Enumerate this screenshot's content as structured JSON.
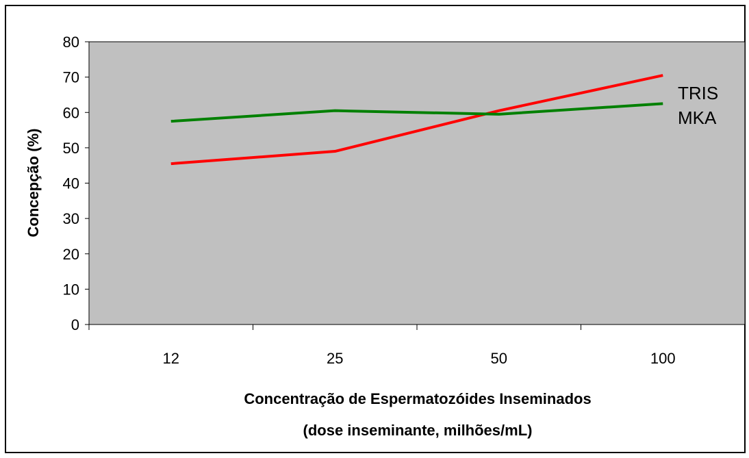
{
  "chart_data": {
    "type": "line",
    "categories": [
      "12",
      "25",
      "50",
      "100"
    ],
    "series": [
      {
        "name": "TRIS",
        "values": [
          45.5,
          49,
          60.5,
          70.5
        ],
        "color": "#ff0000"
      },
      {
        "name": "MKA",
        "values": [
          57.5,
          60.5,
          59.5,
          62.5
        ],
        "color": "#008000"
      }
    ],
    "ylabel": "Concepção (%)",
    "xlabel_line1": "Concentração de Espermatozóides Inseminados",
    "xlabel_line2": "(dose inseminante, milhões/mL)",
    "ylim": [
      0,
      80
    ],
    "yticks": [
      "0",
      "10",
      "20",
      "30",
      "40",
      "50",
      "60",
      "70",
      "80"
    ],
    "plot_background": "#c0c0c0",
    "grid": false,
    "legend": "right, at line ends"
  }
}
